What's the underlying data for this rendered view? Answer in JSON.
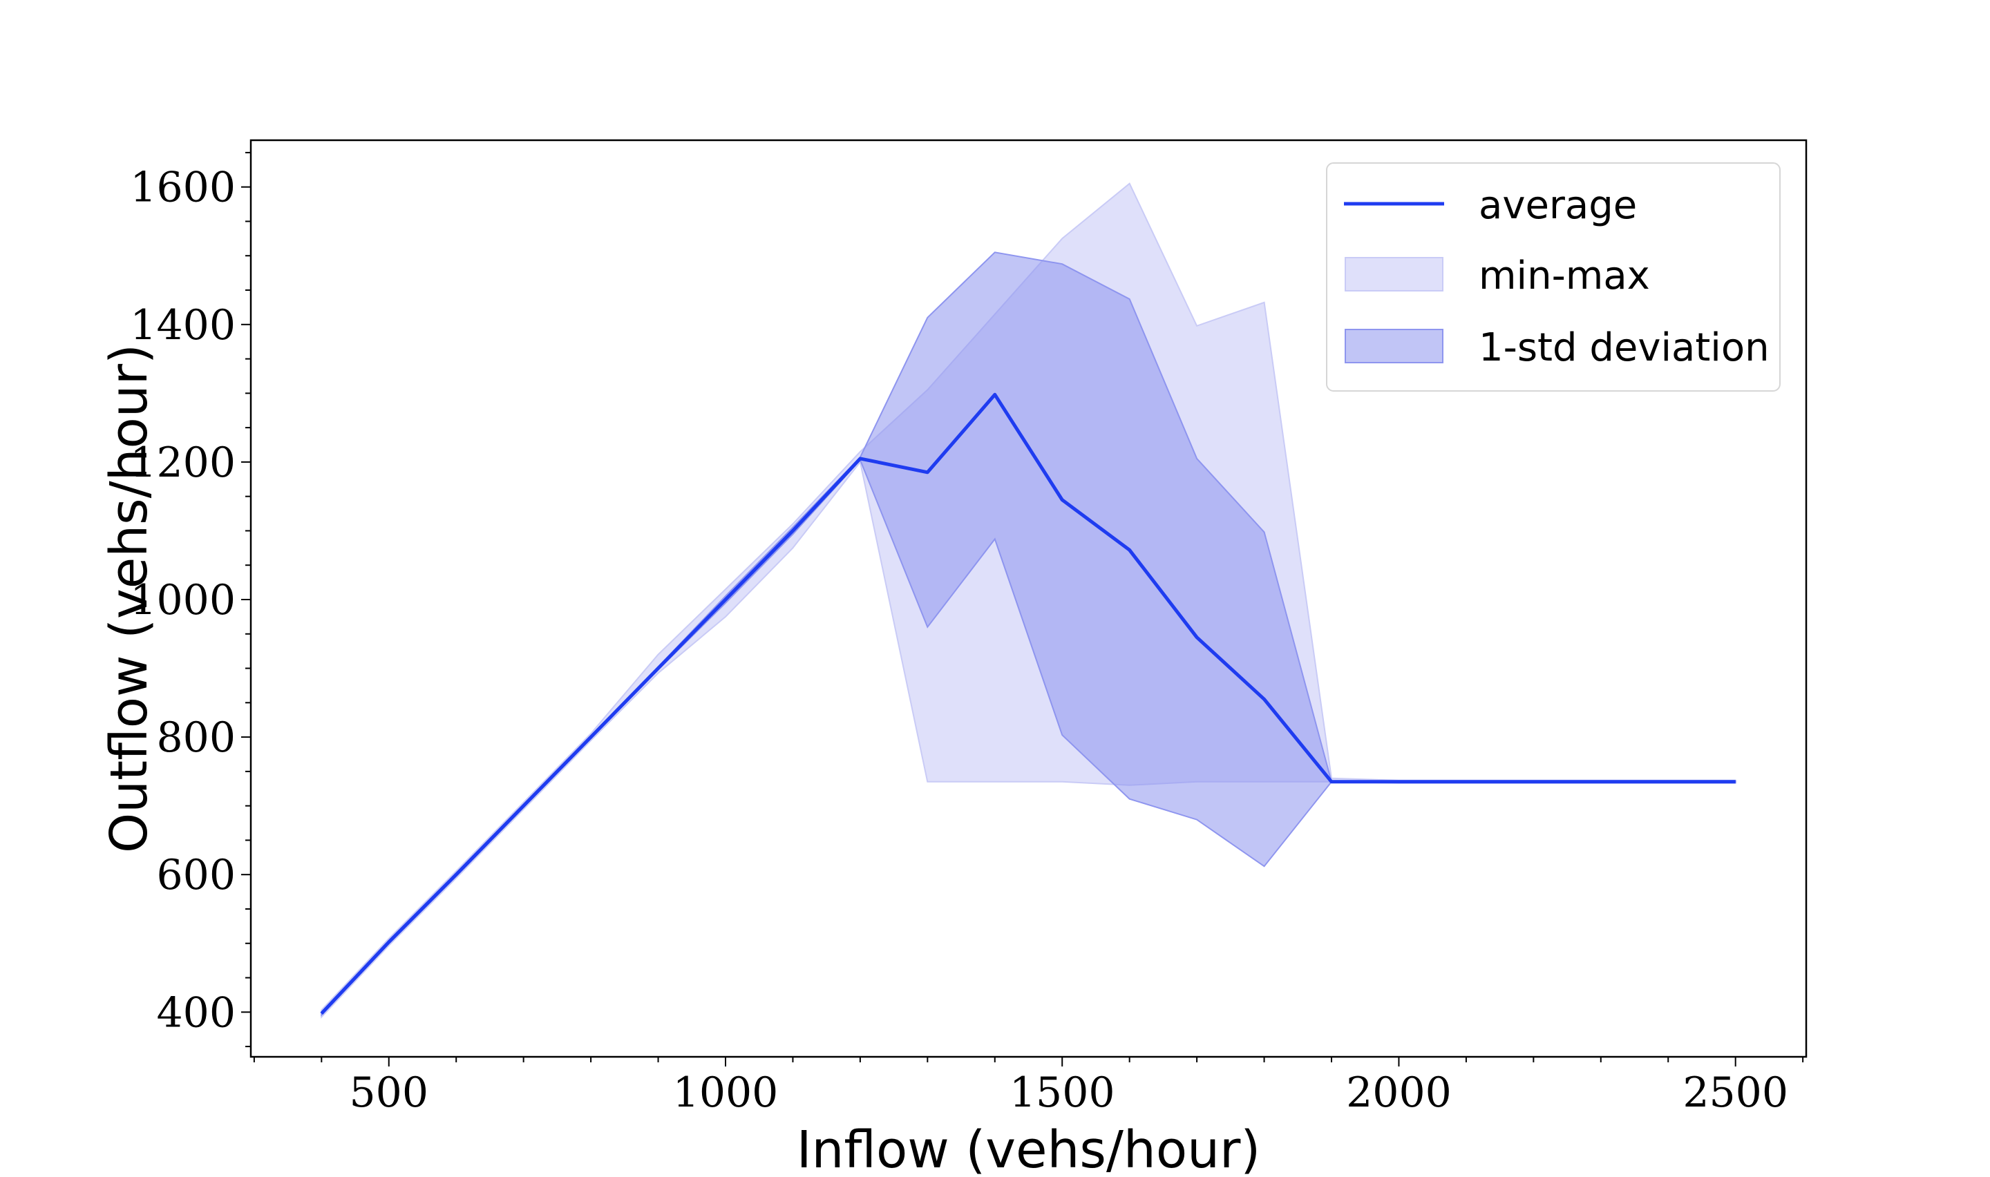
{
  "chart_data": {
    "type": "line",
    "xlabel": "Inflow (vehs/hour)",
    "ylabel": "Outflow (vehs/hour)",
    "xlim": [
      295,
      2605
    ],
    "ylim": [
      335,
      1668
    ],
    "x_ticks": [
      500,
      1000,
      1500,
      2000,
      2500
    ],
    "y_ticks": [
      400,
      600,
      800,
      1000,
      1200,
      1400,
      1600
    ],
    "grid": false,
    "legend_position": "top-right",
    "colors": {
      "average": "#1f3cf0",
      "min_max_fill": "#c9cbf6",
      "std_fill": "#8e95ef"
    },
    "x": [
      400,
      500,
      600,
      700,
      800,
      900,
      1000,
      1100,
      1200,
      1300,
      1400,
      1500,
      1600,
      1700,
      1800,
      1900,
      2000,
      2100,
      2200,
      2300,
      2400,
      2500
    ],
    "series": [
      {
        "name": "average",
        "values": [
          398,
          502,
          600,
          700,
          800,
          900,
          1000,
          1100,
          1205,
          1185,
          1298,
          1145,
          1072,
          945,
          855,
          735,
          735,
          735,
          735,
          735,
          735,
          735
        ]
      },
      {
        "name": "min-max",
        "lower": [
          393,
          497,
          595,
          695,
          795,
          893,
          975,
          1075,
          1200,
          735,
          735,
          735,
          730,
          735,
          735,
          735,
          733,
          733,
          733,
          733,
          733,
          733
        ],
        "upper": [
          403,
          507,
          605,
          705,
          805,
          920,
          1015,
          1110,
          1215,
          1305,
          1415,
          1525,
          1605,
          1398,
          1432,
          740,
          737,
          737,
          737,
          737,
          737,
          737
        ]
      },
      {
        "name": "1-std deviation",
        "lower": [
          396,
          500,
          598,
          698,
          798,
          898,
          995,
          1095,
          1203,
          960,
          1088,
          803,
          710,
          680,
          612,
          735,
          734,
          734,
          734,
          734,
          734,
          734
        ],
        "upper": [
          400,
          504,
          602,
          702,
          802,
          902,
          1005,
          1105,
          1207,
          1410,
          1505,
          1488,
          1437,
          1205,
          1098,
          735,
          736,
          736,
          736,
          736,
          736,
          736
        ]
      }
    ]
  }
}
